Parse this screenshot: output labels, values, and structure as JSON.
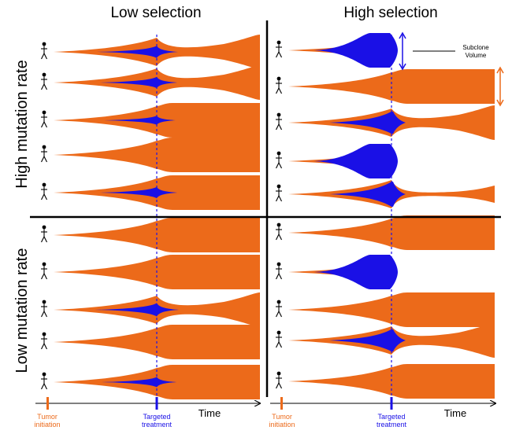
{
  "col_headers": [
    "Low selection",
    "High selection"
  ],
  "row_headers": [
    "High mutation rate",
    "Low mutation rate"
  ],
  "annotation": {
    "label_line1": "Subclone",
    "label_line2": "Volume"
  },
  "axis": {
    "time_label": "Time",
    "initiation_line1": "Tumor",
    "initiation_line2": "initiation",
    "treatment_line1": "Targeted",
    "treatment_line2": "treatment"
  },
  "colors": {
    "tumor": "#ec6a1a",
    "subclone": "#1a10e6",
    "treatment_line": "#1a10e6",
    "initiation_marker": "#ec6a1a",
    "divider": "#000000"
  },
  "icons": {
    "patient": "person-stick-figure-icon"
  },
  "panels": [
    {
      "id": "high-mut-low-sel",
      "mutation": "High mutation rate",
      "selection": "Low selection",
      "trajectories": [
        {
          "outcome": "regrowth-tapered",
          "subclone_peak": 0.35
        },
        {
          "outcome": "regrowth-tapered",
          "subclone_peak": 0.3
        },
        {
          "outcome": "plateau",
          "subclone_peak": 0.2
        },
        {
          "outcome": "plateau",
          "subclone_peak": 0.0
        },
        {
          "outcome": "plateau",
          "subclone_peak": 0.3
        }
      ]
    },
    {
      "id": "high-mut-high-sel",
      "mutation": "High mutation rate",
      "selection": "High selection",
      "trajectories": [
        {
          "outcome": "subclone-takeover",
          "subclone_peak": 1.0
        },
        {
          "outcome": "plateau",
          "subclone_peak": 0.0
        },
        {
          "outcome": "regrowth-tapered",
          "subclone_peak": 0.8
        },
        {
          "outcome": "subclone-takeover",
          "subclone_peak": 1.0
        },
        {
          "outcome": "collapse-regrowth",
          "subclone_peak": 0.9
        }
      ]
    },
    {
      "id": "low-mut-low-sel",
      "mutation": "Low mutation rate",
      "selection": "Low selection",
      "trajectories": [
        {
          "outcome": "plateau",
          "subclone_peak": 0.0
        },
        {
          "outcome": "plateau",
          "subclone_peak": 0.0
        },
        {
          "outcome": "regrowth-tapered",
          "subclone_peak": 0.4
        },
        {
          "outcome": "plateau",
          "subclone_peak": 0.0
        },
        {
          "outcome": "plateau",
          "subclone_peak": 0.25
        }
      ]
    },
    {
      "id": "low-mut-high-sel",
      "mutation": "Low mutation rate",
      "selection": "High selection",
      "trajectories": [
        {
          "outcome": "plateau",
          "subclone_peak": 0.0
        },
        {
          "outcome": "subclone-takeover",
          "subclone_peak": 1.0
        },
        {
          "outcome": "plateau",
          "subclone_peak": 0.0
        },
        {
          "outcome": "regrowth-tapered",
          "subclone_peak": 0.8
        },
        {
          "outcome": "plateau",
          "subclone_peak": 0.0
        }
      ]
    }
  ]
}
